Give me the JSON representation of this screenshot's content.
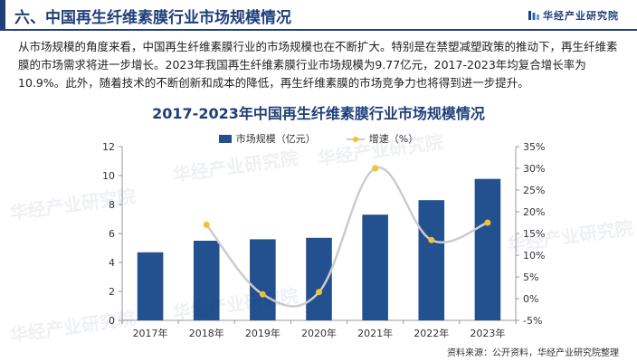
{
  "header": {
    "title": "六、中国再生纤维素膜行业市场规模情况",
    "brand": "华经产业研究院"
  },
  "paragraph": "从市场规模的角度来看，中国再生纤维素膜行业的市场规模也在不断扩大。特别是在禁塑减塑政策的推动下，再生纤维素膜的市场需求将进一步增长。2023年我国再生纤维素膜行业市场规模为9.77亿元，2017-2023年均复合增长率为10.9%。此外，随着技术的不断创新和成本的降低，再生纤维素膜的市场竞争力也将得到进一步提升。",
  "watermark_text": "华经产业研究院",
  "chart_data": {
    "type": "bar",
    "title": "2017-2023年中国再生纤维素膜行业市场规模情况",
    "categories": [
      "2017年",
      "2018年",
      "2019年",
      "2020年",
      "2021年",
      "2022年",
      "2023年"
    ],
    "series": [
      {
        "name": "市场规模（亿元）",
        "type": "bar",
        "axis": "left",
        "color": "#23508f",
        "values": [
          4.7,
          5.5,
          5.6,
          5.7,
          7.3,
          8.3,
          9.77
        ]
      },
      {
        "name": "增速（%）",
        "type": "line",
        "axis": "right",
        "color": "#cccccc",
        "marker_color": "#f2c12e",
        "values": [
          null,
          17.0,
          1.0,
          1.5,
          30.0,
          13.5,
          17.5
        ]
      }
    ],
    "y_left": {
      "min": 0,
      "max": 12,
      "ticks": [
        "0",
        "2",
        "4",
        "6",
        "8",
        "10",
        "12"
      ]
    },
    "y_right": {
      "min": -5,
      "max": 35,
      "ticks": [
        "-5%",
        "0%",
        "5%",
        "10%",
        "15%",
        "20%",
        "25%",
        "30%",
        "35%"
      ]
    },
    "legend_position": "top-center",
    "grid": false
  },
  "source": "资料来源：公开资料，华经产业研究院整理"
}
